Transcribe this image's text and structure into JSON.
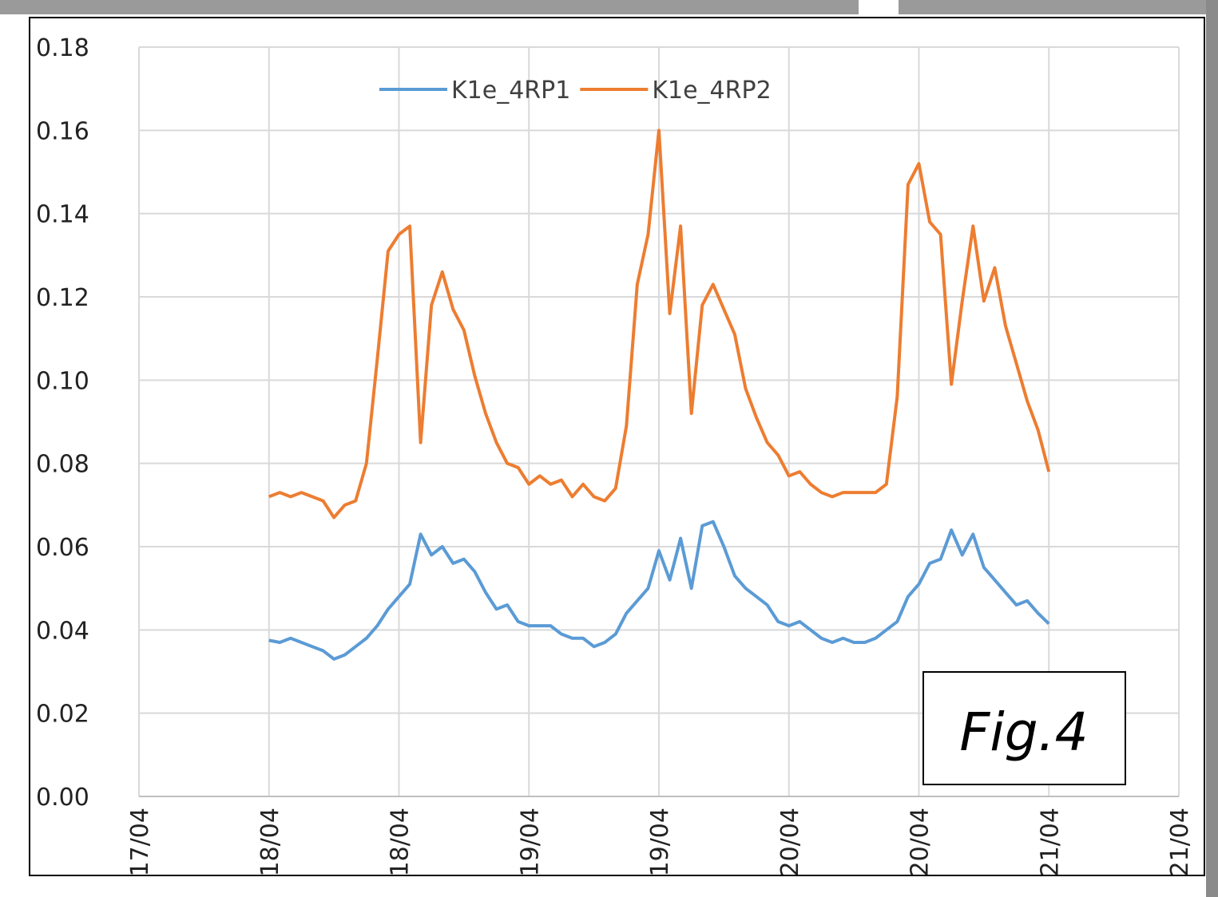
{
  "chart_data": {
    "type": "line",
    "annotation": "Fig.4",
    "x": [
      12,
      13,
      14,
      15,
      16,
      17,
      18,
      19,
      20,
      21,
      22,
      23,
      24,
      25,
      26,
      27,
      28,
      29,
      30,
      31,
      32,
      33,
      34,
      35,
      36,
      37,
      38,
      39,
      40,
      41,
      42,
      43,
      44,
      45,
      46,
      47,
      48,
      49,
      50,
      51,
      52,
      53,
      54,
      55,
      56,
      57,
      58,
      59,
      60,
      61,
      62,
      63,
      64,
      65,
      66,
      67,
      68,
      69,
      70,
      71,
      72,
      73,
      74,
      75,
      76,
      77,
      78,
      79,
      80,
      81,
      82,
      83,
      84
    ],
    "series": [
      {
        "name": "K1e_4RP1",
        "color": "#5b9bd5",
        "values": [
          0.0375,
          0.037,
          0.038,
          0.037,
          0.036,
          0.035,
          0.033,
          0.034,
          0.036,
          0.038,
          0.041,
          0.045,
          0.048,
          0.051,
          0.063,
          0.058,
          0.06,
          0.056,
          0.057,
          0.054,
          0.049,
          0.045,
          0.046,
          0.042,
          0.041,
          0.041,
          0.041,
          0.039,
          0.038,
          0.038,
          0.036,
          0.037,
          0.039,
          0.044,
          0.047,
          0.05,
          0.059,
          0.052,
          0.062,
          0.05,
          0.065,
          0.066,
          0.06,
          0.053,
          0.05,
          0.048,
          0.046,
          0.042,
          0.041,
          0.042,
          0.04,
          0.038,
          0.037,
          0.038,
          0.037,
          0.037,
          0.038,
          0.04,
          0.042,
          0.048,
          0.051,
          0.056,
          0.057,
          0.064,
          0.058,
          0.063,
          0.055,
          0.052,
          0.049,
          0.046,
          0.047,
          0.044,
          0.0415
        ]
      },
      {
        "name": "K1e_4RP2",
        "color": "#ed7d31",
        "values": [
          0.072,
          0.073,
          0.072,
          0.073,
          0.072,
          0.071,
          0.067,
          0.07,
          0.071,
          0.08,
          0.105,
          0.131,
          0.135,
          0.137,
          0.085,
          0.118,
          0.126,
          0.117,
          0.112,
          0.101,
          0.092,
          0.085,
          0.08,
          0.079,
          0.075,
          0.077,
          0.075,
          0.076,
          0.072,
          0.075,
          0.072,
          0.071,
          0.074,
          0.089,
          0.123,
          0.135,
          0.16,
          0.116,
          0.137,
          0.092,
          0.118,
          0.123,
          0.117,
          0.111,
          0.098,
          0.091,
          0.085,
          0.082,
          0.077,
          0.078,
          0.075,
          0.073,
          0.072,
          0.073,
          0.073,
          0.073,
          0.073,
          0.075,
          0.096,
          0.147,
          0.152,
          0.138,
          0.135,
          0.099,
          0.119,
          0.137,
          0.119,
          0.127,
          0.113,
          0.104,
          0.095,
          0.088,
          0.078
        ]
      }
    ],
    "xlim": [
      0,
      96
    ],
    "xticks": [
      {
        "value": 0,
        "label": "17/04"
      },
      {
        "value": 12,
        "label": "18/04"
      },
      {
        "value": 24,
        "label": "18/04"
      },
      {
        "value": 36,
        "label": "19/04"
      },
      {
        "value": 48,
        "label": "19/04"
      },
      {
        "value": 60,
        "label": "20/04"
      },
      {
        "value": 72,
        "label": "20/04"
      },
      {
        "value": 84,
        "label": "21/04"
      },
      {
        "value": 96,
        "label": "21/04"
      }
    ],
    "ylim": [
      0,
      0.18
    ],
    "yticks": [
      {
        "value": 0,
        "label": "0.00"
      },
      {
        "value": 0.02,
        "label": "0.02"
      },
      {
        "value": 0.04,
        "label": "0.04"
      },
      {
        "value": 0.06,
        "label": "0.06"
      },
      {
        "value": 0.08,
        "label": "0.08"
      },
      {
        "value": 0.1,
        "label": "0.10"
      },
      {
        "value": 0.12,
        "label": "0.12"
      },
      {
        "value": 0.14,
        "label": "0.14"
      },
      {
        "value": 0.16,
        "label": "0.16"
      },
      {
        "value": 0.18,
        "label": "0.18"
      }
    ],
    "grid": true
  }
}
